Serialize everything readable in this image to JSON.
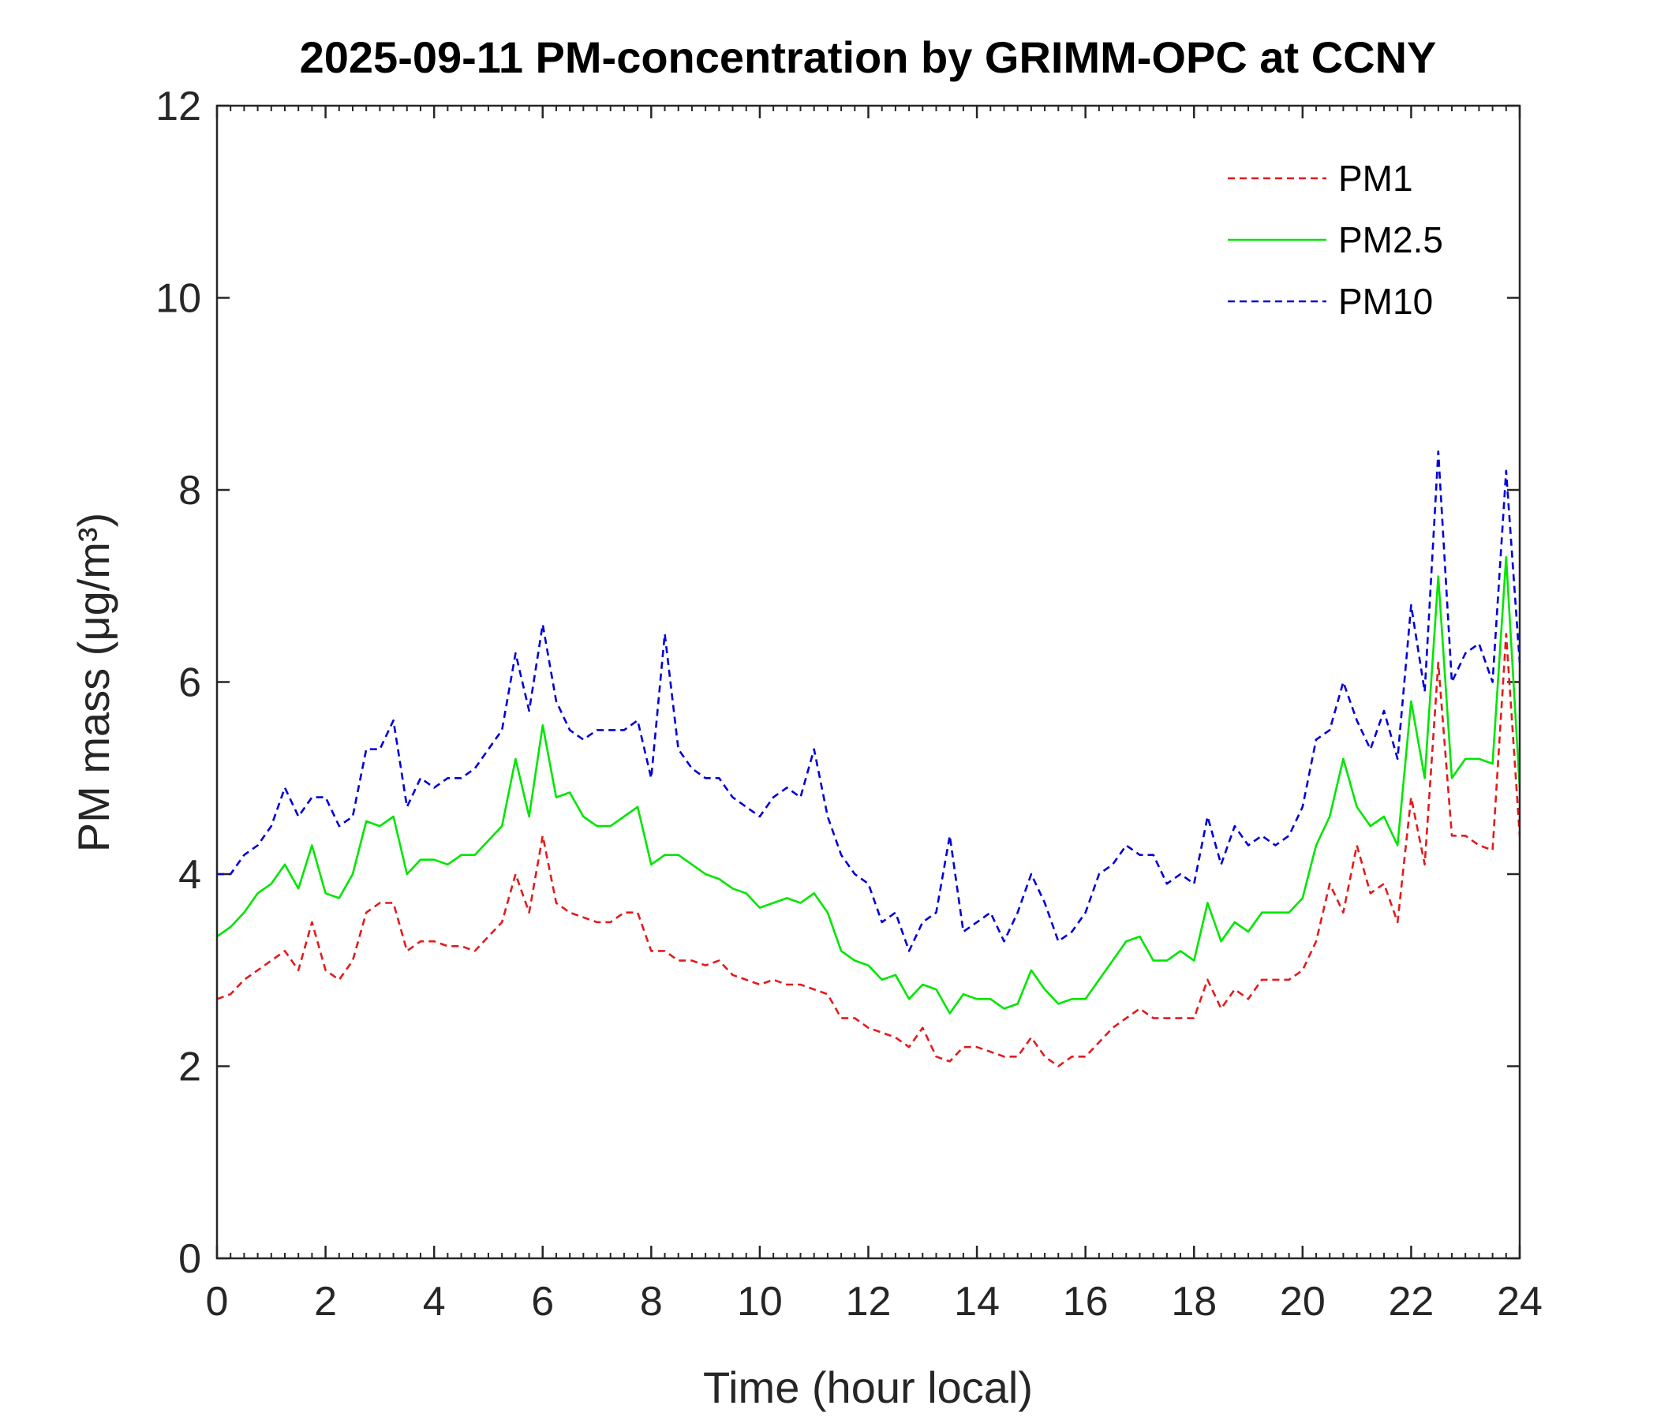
{
  "chart_data": {
    "type": "line",
    "title": "2025-09-11 PM-concentration by GRIMM-OPC at CCNY",
    "x_label": "Time (hour local)",
    "y_label": "PM mass (μg/m³)",
    "x": [
      0,
      0.25,
      0.5,
      0.75,
      1,
      1.25,
      1.5,
      1.75,
      2,
      2.25,
      2.5,
      2.75,
      3,
      3.25,
      3.5,
      3.75,
      4,
      4.25,
      4.5,
      4.75,
      5,
      5.25,
      5.5,
      5.75,
      6,
      6.25,
      6.5,
      6.75,
      7,
      7.25,
      7.5,
      7.75,
      8,
      8.25,
      8.5,
      8.75,
      9,
      9.25,
      9.5,
      9.75,
      10,
      10.25,
      10.5,
      10.75,
      11,
      11.25,
      11.5,
      11.75,
      12,
      12.25,
      12.5,
      12.75,
      13,
      13.25,
      13.5,
      13.75,
      14,
      14.25,
      14.5,
      14.75,
      15,
      15.25,
      15.5,
      15.75,
      16,
      16.25,
      16.5,
      16.75,
      17,
      17.25,
      17.5,
      17.75,
      18,
      18.25,
      18.5,
      18.75,
      19,
      19.25,
      19.5,
      19.75,
      20,
      20.25,
      20.5,
      20.75,
      21,
      21.25,
      21.5,
      21.75,
      22,
      22.25,
      22.5,
      22.75,
      23,
      23.25,
      23.5,
      23.75,
      24
    ],
    "series": [
      {
        "name": "PM1",
        "color": "#e31a1c",
        "linestyle": "dashed",
        "values": [
          2.7,
          2.75,
          2.9,
          3.0,
          3.1,
          3.2,
          3.0,
          3.5,
          3.0,
          2.9,
          3.1,
          3.6,
          3.7,
          3.7,
          3.2,
          3.3,
          3.3,
          3.25,
          3.25,
          3.2,
          3.35,
          3.5,
          4.0,
          3.6,
          4.4,
          3.7,
          3.6,
          3.55,
          3.5,
          3.5,
          3.6,
          3.6,
          3.2,
          3.2,
          3.1,
          3.1,
          3.05,
          3.1,
          2.95,
          2.9,
          2.85,
          2.9,
          2.85,
          2.85,
          2.8,
          2.75,
          2.5,
          2.5,
          2.4,
          2.35,
          2.3,
          2.2,
          2.4,
          2.1,
          2.05,
          2.2,
          2.2,
          2.15,
          2.1,
          2.1,
          2.3,
          2.1,
          2.0,
          2.1,
          2.1,
          2.25,
          2.4,
          2.5,
          2.6,
          2.5,
          2.5,
          2.5,
          2.5,
          2.9,
          2.6,
          2.8,
          2.7,
          2.9,
          2.9,
          2.9,
          3.0,
          3.3,
          3.9,
          3.6,
          4.3,
          3.8,
          3.9,
          3.5,
          4.8,
          4.1,
          6.2,
          4.4,
          4.4,
          4.3,
          4.25,
          6.5,
          4.4
        ]
      },
      {
        "name": "PM2.5",
        "color": "#00e600",
        "linestyle": "solid",
        "values": [
          3.35,
          3.45,
          3.6,
          3.8,
          3.9,
          4.1,
          3.85,
          4.3,
          3.8,
          3.75,
          4.0,
          4.55,
          4.5,
          4.6,
          4.0,
          4.15,
          4.15,
          4.1,
          4.2,
          4.2,
          4.35,
          4.5,
          5.2,
          4.6,
          5.55,
          4.8,
          4.85,
          4.6,
          4.5,
          4.5,
          4.6,
          4.7,
          4.1,
          4.2,
          4.2,
          4.1,
          4.0,
          3.95,
          3.85,
          3.8,
          3.65,
          3.7,
          3.75,
          3.7,
          3.8,
          3.6,
          3.2,
          3.1,
          3.05,
          2.9,
          2.95,
          2.7,
          2.85,
          2.8,
          2.55,
          2.75,
          2.7,
          2.7,
          2.6,
          2.65,
          3.0,
          2.8,
          2.65,
          2.7,
          2.7,
          2.9,
          3.1,
          3.3,
          3.35,
          3.1,
          3.1,
          3.2,
          3.1,
          3.7,
          3.3,
          3.5,
          3.4,
          3.6,
          3.6,
          3.6,
          3.75,
          4.3,
          4.6,
          5.2,
          4.7,
          4.5,
          4.6,
          4.3,
          5.8,
          5.0,
          7.1,
          5.0,
          5.2,
          5.2,
          5.15,
          7.3,
          4.9
        ]
      },
      {
        "name": "PM10",
        "color": "#0000d9",
        "linestyle": "dashed",
        "values": [
          4.0,
          4.0,
          4.2,
          4.3,
          4.5,
          4.9,
          4.6,
          4.8,
          4.8,
          4.5,
          4.6,
          5.3,
          5.3,
          5.6,
          4.7,
          5.0,
          4.9,
          5.0,
          5.0,
          5.1,
          5.3,
          5.5,
          6.3,
          5.7,
          6.6,
          5.8,
          5.5,
          5.4,
          5.5,
          5.5,
          5.5,
          5.6,
          5.0,
          6.5,
          5.3,
          5.1,
          5.0,
          5.0,
          4.8,
          4.7,
          4.6,
          4.8,
          4.9,
          4.8,
          5.3,
          4.6,
          4.2,
          4.0,
          3.9,
          3.5,
          3.6,
          3.2,
          3.5,
          3.6,
          4.4,
          3.4,
          3.5,
          3.6,
          3.3,
          3.6,
          4.0,
          3.7,
          3.3,
          3.4,
          3.6,
          4.0,
          4.1,
          4.3,
          4.2,
          4.2,
          3.9,
          4.0,
          3.9,
          4.6,
          4.1,
          4.5,
          4.3,
          4.4,
          4.3,
          4.4,
          4.7,
          5.4,
          5.5,
          6.0,
          5.6,
          5.3,
          5.7,
          5.2,
          6.8,
          5.9,
          8.4,
          6.0,
          6.3,
          6.4,
          6.0,
          8.2,
          6.2
        ]
      }
    ],
    "xlim": [
      0,
      24
    ],
    "xticks": [
      0,
      2,
      4,
      6,
      8,
      10,
      12,
      14,
      16,
      18,
      20,
      22,
      24
    ],
    "ylim": [
      0,
      12
    ],
    "yticks": [
      0,
      2,
      4,
      6,
      8,
      10,
      12
    ],
    "grid": false,
    "legend": "upper right"
  }
}
